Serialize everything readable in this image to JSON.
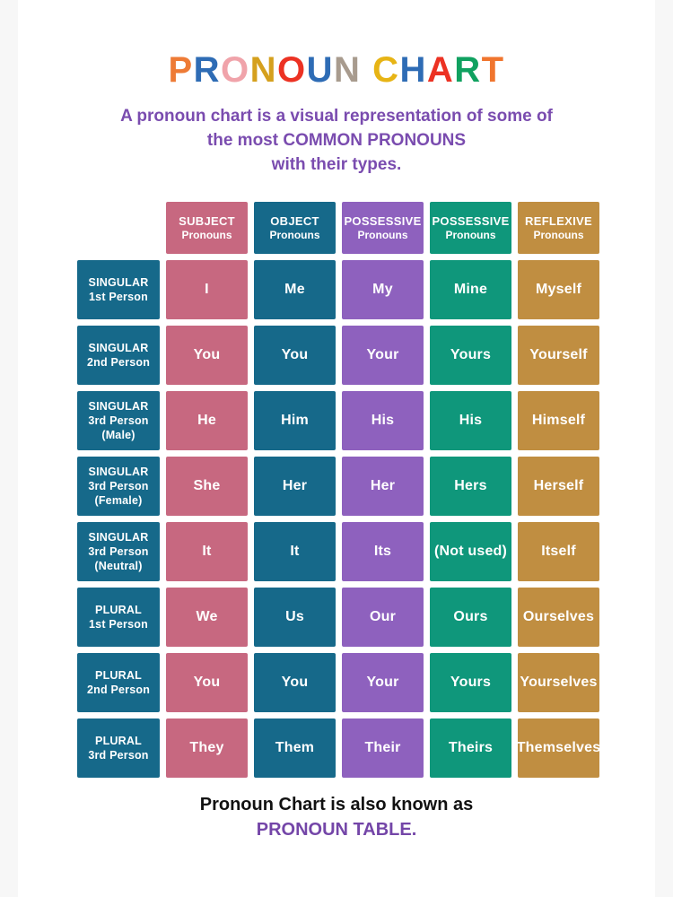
{
  "page": {
    "background": "#ffffff",
    "side_strip_color": "#f7f7f7"
  },
  "title": {
    "text": "PRONOUN CHART",
    "letters": [
      {
        "ch": "P",
        "color": "#ee7b36"
      },
      {
        "ch": "R",
        "color": "#2e6cb5"
      },
      {
        "ch": "O",
        "color": "#f0a3aa"
      },
      {
        "ch": "N",
        "color": "#d5a01e"
      },
      {
        "ch": "O",
        "color": "#ec3223"
      },
      {
        "ch": "U",
        "color": "#2e6cb5"
      },
      {
        "ch": "N",
        "color": "#a89b8e"
      },
      {
        "ch": " ",
        "color": ""
      },
      {
        "ch": "C",
        "color": "#e7b415"
      },
      {
        "ch": "H",
        "color": "#2e6cb5"
      },
      {
        "ch": "A",
        "color": "#ec3223"
      },
      {
        "ch": "R",
        "color": "#10a160"
      },
      {
        "ch": "T",
        "color": "#f0752e"
      }
    ]
  },
  "subtitle": {
    "color": "#7a4caf",
    "lines": [
      "A pronoun chart is a visual representation of some of",
      "the most COMMON PRONOUNS",
      "with their types."
    ]
  },
  "chart_data": {
    "type": "table",
    "title": "Pronoun Chart",
    "column_headers": [
      {
        "label": "SUBJECT",
        "sublabel": "Pronouns",
        "color": "#c76880"
      },
      {
        "label": "OBJECT",
        "sublabel": "Pronouns",
        "color": "#16698a"
      },
      {
        "label": "POSSESSIVE",
        "sublabel": "Pronouns",
        "color": "#8e61be"
      },
      {
        "label": "POSSESSIVE",
        "sublabel": "Pronouns",
        "color": "#0f977b"
      },
      {
        "label": "REFLEXIVE",
        "sublabel": "Pronouns",
        "color": "#c08e41"
      }
    ],
    "row_header_color": "#16698a",
    "rows": [
      {
        "header": [
          "SINGULAR",
          "1st Person"
        ],
        "cells": [
          "I",
          "Me",
          "My",
          "Mine",
          "Myself"
        ]
      },
      {
        "header": [
          "SINGULAR",
          "2nd Person"
        ],
        "cells": [
          "You",
          "You",
          "Your",
          "Yours",
          "Yourself"
        ]
      },
      {
        "header": [
          "SINGULAR",
          "3rd Person",
          "(Male)"
        ],
        "cells": [
          "He",
          "Him",
          "His",
          "His",
          "Himself"
        ]
      },
      {
        "header": [
          "SINGULAR",
          "3rd Person",
          "(Female)"
        ],
        "cells": [
          "She",
          "Her",
          "Her",
          "Hers",
          "Herself"
        ]
      },
      {
        "header": [
          "SINGULAR",
          "3rd Person",
          "(Neutral)"
        ],
        "cells": [
          "It",
          "It",
          "Its",
          "(Not used)",
          "Itself"
        ]
      },
      {
        "header": [
          "PLURAL",
          "1st Person"
        ],
        "cells": [
          "We",
          "Us",
          "Our",
          "Ours",
          "Ourselves"
        ]
      },
      {
        "header": [
          "PLURAL",
          "2nd Person"
        ],
        "cells": [
          "You",
          "You",
          "Your",
          "Yours",
          "Yourselves"
        ]
      },
      {
        "header": [
          "PLURAL",
          "3rd Person"
        ],
        "cells": [
          "They",
          "Them",
          "Their",
          "Theirs",
          "Themselves"
        ]
      }
    ]
  },
  "footer": {
    "line1": "Pronoun Chart is also known as",
    "line2": "PRONOUN TABLE.",
    "line1_color": "#111111",
    "line2_color": "#7446a8"
  }
}
